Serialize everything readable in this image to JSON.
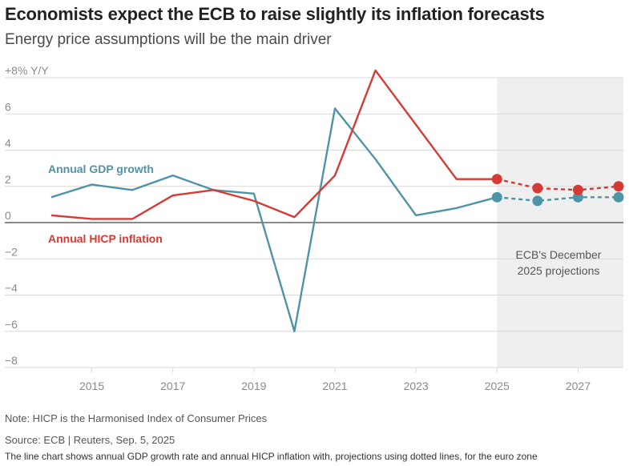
{
  "title": "Economists expect the ECB to raise slightly its inflation forecasts",
  "subtitle": "Energy price assumptions will be the main driver",
  "footer": {
    "note": "Note: HICP is the Harmonised Index of Consumer Prices",
    "source": "Source: ECB | Reuters, Sep. 5, 2025",
    "description": "The line chart shows annual GDP growth rate and annual HICP inflation with, projections using dotted lines, for the euro zone"
  },
  "colors": {
    "gdp": "#4f93a6",
    "hicp": "#d53a35",
    "projection_band": "#efefef",
    "grid": "#d9d9d9",
    "zero_line": "#444444"
  },
  "chart_data": {
    "type": "line",
    "title": "Economists expect the ECB to raise slightly its inflation forecasts",
    "subtitle": "Energy price assumptions will be the main driver",
    "xlabel": "",
    "ylabel": "+8% Y/Y",
    "xlim": [
      2014,
      2028
    ],
    "ylim": [
      -8,
      8
    ],
    "yticks": [
      {
        "value": 8,
        "label": "+8% Y/Y"
      },
      {
        "value": 6,
        "label": "6"
      },
      {
        "value": 4,
        "label": "4"
      },
      {
        "value": 2,
        "label": "2"
      },
      {
        "value": 0,
        "label": "0"
      },
      {
        "value": -2,
        "label": "−2"
      },
      {
        "value": -4,
        "label": "−4"
      },
      {
        "value": -6,
        "label": "−6"
      },
      {
        "value": -8,
        "label": "−8"
      }
    ],
    "xticks": [
      {
        "value": 2015,
        "label": "2015"
      },
      {
        "value": 2017,
        "label": "2017"
      },
      {
        "value": 2019,
        "label": "2019"
      },
      {
        "value": 2021,
        "label": "2021"
      },
      {
        "value": 2023,
        "label": "2023"
      },
      {
        "value": 2025,
        "label": "2025"
      },
      {
        "value": 2027,
        "label": "2027"
      }
    ],
    "projection_start": 2025,
    "projection_label_line1": "ECB's December",
    "projection_label_line2": "2025 projections",
    "series": [
      {
        "name": "Annual GDP growth",
        "key": "gdp",
        "x": [
          2014,
          2015,
          2016,
          2017,
          2018,
          2019,
          2020,
          2021,
          2022,
          2023,
          2024,
          2025,
          2026,
          2027,
          2028
        ],
        "values": [
          1.4,
          2.1,
          1.8,
          2.6,
          1.8,
          1.6,
          -6.0,
          6.3,
          3.5,
          0.4,
          0.8,
          1.4,
          1.2,
          1.4,
          1.4
        ],
        "projection_from": 2025
      },
      {
        "name": "Annual HICP inflation",
        "key": "hicp",
        "x": [
          2014,
          2015,
          2016,
          2017,
          2018,
          2019,
          2020,
          2021,
          2022,
          2023,
          2024,
          2025,
          2026,
          2027,
          2028
        ],
        "values": [
          0.4,
          0.2,
          0.2,
          1.5,
          1.8,
          1.2,
          0.3,
          2.6,
          8.4,
          5.4,
          2.4,
          2.4,
          1.9,
          1.8,
          2.0
        ],
        "projection_from": 2025
      }
    ]
  }
}
